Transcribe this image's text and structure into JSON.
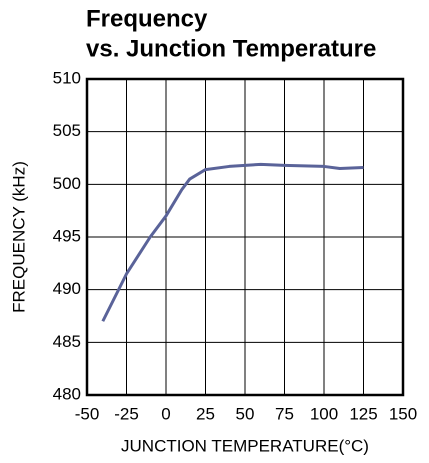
{
  "chart_data": {
    "type": "line",
    "title": [
      "Frequency",
      "vs. Junction Temperature"
    ],
    "x_label": "JUNCTION TEMPERATURE(°C)",
    "y_label": "FREQUENCY (kHz)",
    "x": [
      -40,
      -25,
      -10,
      0,
      10,
      15,
      25,
      40,
      50,
      60,
      75,
      100,
      110,
      125
    ],
    "series": [
      {
        "color": "#5a6399",
        "values": [
          487,
          491.5,
          495,
          497,
          499.5,
          500.5,
          501.4,
          501.7,
          501.8,
          501.9,
          501.8,
          501.7,
          501.5,
          501.6
        ]
      }
    ],
    "xlim": [
      -50,
      150
    ],
    "xticks": [
      -50,
      -25,
      0,
      25,
      50,
      75,
      100,
      125,
      150
    ],
    "ylim": [
      480,
      510
    ],
    "yticks": [
      480,
      485,
      490,
      495,
      500,
      505,
      510
    ],
    "grid": true
  }
}
